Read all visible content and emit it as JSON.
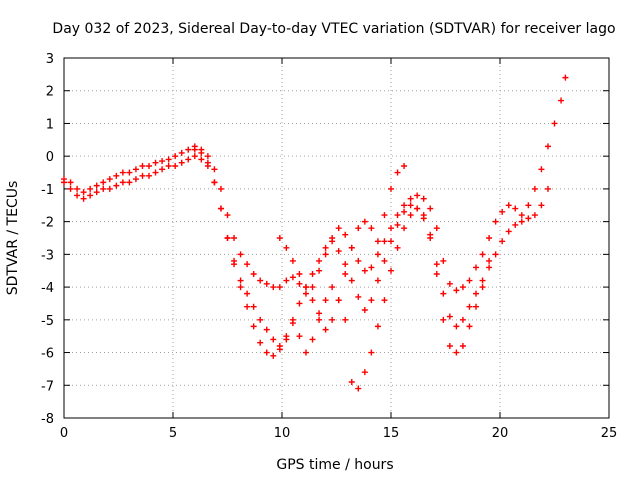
{
  "chart_data": {
    "type": "scatter",
    "title": "Day 032 of 2023, Sidereal Day-to-day VTEC variation (SDTVAR) for receiver lago",
    "xlabel": "GPS time / hours",
    "ylabel": "SDTVAR / TECUs",
    "xlim": [
      0,
      25
    ],
    "ylim": [
      -8,
      3
    ],
    "xticks": [
      0,
      5,
      10,
      15,
      20,
      25
    ],
    "yticks": [
      -8,
      -7,
      -6,
      -5,
      -4,
      -3,
      -2,
      -1,
      0,
      1,
      2,
      3
    ],
    "grid": true,
    "legend": "none",
    "marker": "+",
    "color": "#ff0000",
    "series": [
      {
        "x": [
          0.0,
          0.3,
          0.6,
          0.9,
          1.2,
          1.5,
          1.8,
          2.1,
          2.4,
          2.7,
          3.0,
          3.3,
          3.6,
          3.9,
          4.2,
          4.5,
          4.8,
          5.1,
          5.4,
          5.7,
          6.0,
          6.3,
          6.6,
          6.9,
          7.2,
          7.5,
          7.8,
          8.1,
          8.4,
          8.7,
          9.0,
          9.3,
          9.6,
          9.9,
          10.2,
          10.5,
          10.8,
          11.1,
          11.4,
          11.7,
          12.0,
          12.3,
          12.6,
          12.9,
          13.2,
          13.5,
          13.8,
          14.1,
          14.4,
          14.7,
          15.0,
          15.3,
          15.6,
          15.9,
          16.2,
          16.5,
          16.8,
          17.1,
          17.4,
          17.7,
          18.0,
          18.3,
          18.6,
          18.9,
          19.2,
          19.5,
          19.8,
          20.1,
          20.4,
          20.7,
          21.0,
          21.3,
          21.6,
          21.9,
          22.2,
          22.5,
          22.8,
          23.0
        ],
        "y": [
          -0.7,
          -0.8,
          -1.0,
          -1.1,
          -1.0,
          -0.9,
          -0.8,
          -0.7,
          -0.6,
          -0.5,
          -0.5,
          -0.4,
          -0.3,
          -0.3,
          -0.2,
          -0.15,
          -0.1,
          0.0,
          0.1,
          0.2,
          0.3,
          0.2,
          0.0,
          -0.4,
          -1.0,
          -1.8,
          -2.5,
          -3.0,
          -3.3,
          -3.6,
          -3.8,
          -3.9,
          -4.0,
          -4.0,
          -3.8,
          -3.7,
          -3.9,
          -4.2,
          -4.0,
          -3.5,
          -3.0,
          -2.5,
          -2.2,
          -2.4,
          -2.8,
          -3.2,
          -3.5,
          -3.4,
          -3.0,
          -2.6,
          -2.2,
          -1.8,
          -1.5,
          -1.3,
          -1.2,
          -1.3,
          -1.6,
          -2.2,
          -3.2,
          -3.9,
          -4.1,
          -4.0,
          -3.8,
          -3.4,
          -3.0,
          -2.5,
          -2.0,
          -1.7,
          -1.5,
          -1.6,
          -1.8,
          -1.5,
          -1.0,
          -0.4,
          0.3,
          1.0,
          1.7,
          2.4
        ]
      },
      {
        "x": [
          0.0,
          0.3,
          0.6,
          0.9,
          1.2,
          1.5,
          1.8,
          2.1,
          2.4,
          2.7,
          3.0,
          3.3,
          3.6,
          3.9,
          4.2,
          4.5,
          4.8,
          5.1,
          5.4,
          5.7,
          6.0,
          6.3,
          6.6,
          6.9,
          7.2,
          7.5,
          7.8,
          8.1,
          8.4,
          8.7,
          9.0,
          9.3,
          9.6,
          9.9,
          10.2,
          10.5,
          10.8,
          11.1,
          11.4,
          11.7,
          12.0,
          12.3,
          12.6,
          12.9,
          13.2,
          13.5,
          13.8,
          14.1,
          14.4,
          14.7,
          15.0,
          15.3,
          15.6,
          15.9,
          16.2,
          16.5,
          16.8,
          17.1,
          17.4,
          17.7,
          18.0,
          18.3,
          18.6,
          18.9,
          19.2,
          19.5,
          19.8,
          20.1,
          20.4,
          20.7,
          21.0,
          21.3,
          21.6,
          21.9,
          22.2
        ],
        "y": [
          -0.8,
          -1.0,
          -1.2,
          -1.3,
          -1.2,
          -1.1,
          -1.0,
          -1.0,
          -0.9,
          -0.8,
          -0.8,
          -0.7,
          -0.6,
          -0.6,
          -0.5,
          -0.4,
          -0.3,
          -0.3,
          -0.2,
          -0.1,
          0.0,
          -0.1,
          -0.3,
          -0.8,
          -1.6,
          -2.5,
          -3.2,
          -3.8,
          -4.2,
          -4.6,
          -5.0,
          -5.3,
          -5.6,
          -5.8,
          -5.6,
          -5.0,
          -4.5,
          -4.0,
          -3.6,
          -3.2,
          -2.8,
          -2.6,
          -2.9,
          -3.3,
          -3.8,
          -4.3,
          -4.7,
          -4.4,
          -3.8,
          -3.2,
          -2.6,
          -2.1,
          -1.7,
          -1.5,
          -1.6,
          -1.9,
          -2.5,
          -3.3,
          -4.2,
          -4.9,
          -5.2,
          -5.0,
          -4.6,
          -4.2,
          -3.8,
          -3.4,
          -3.0,
          -2.6,
          -2.3,
          -2.1,
          -2.0,
          -1.9,
          -1.8,
          -1.5,
          -1.0
        ]
      },
      {
        "x": [
          6.0,
          6.3,
          6.6,
          6.9,
          7.2,
          7.5,
          7.8,
          8.1,
          8.4,
          8.7,
          9.0,
          9.3,
          9.6,
          9.9,
          10.2,
          10.5,
          10.8,
          11.1,
          11.4,
          11.7,
          12.0,
          12.3,
          12.6,
          12.9,
          13.2,
          13.5,
          13.8,
          14.1,
          14.4,
          14.7,
          15.0,
          15.3,
          15.6,
          15.9,
          16.2,
          16.5,
          16.8,
          17.1,
          17.4,
          17.7,
          18.0,
          18.3,
          18.6,
          18.9,
          19.2,
          19.5
        ],
        "y": [
          0.2,
          0.1,
          -0.2,
          -0.8,
          -1.6,
          -2.5,
          -3.3,
          -4.0,
          -4.6,
          -5.2,
          -5.7,
          -6.0,
          -6.1,
          -5.9,
          -5.5,
          -5.1,
          -5.5,
          -6.0,
          -5.6,
          -5.0,
          -4.4,
          -4.0,
          -4.4,
          -5.0,
          -6.9,
          -7.1,
          -6.6,
          -6.0,
          -5.2,
          -4.4,
          -3.5,
          -2.8,
          -2.2,
          -1.8,
          -1.6,
          -1.8,
          -2.4,
          -3.6,
          -5.0,
          -5.8,
          -6.0,
          -5.8,
          -5.2,
          -4.6,
          -4.0,
          -3.2
        ]
      },
      {
        "x": [
          9.9,
          10.2,
          10.5,
          10.8,
          11.1,
          11.4,
          11.7,
          12.0,
          12.3,
          12.6,
          12.9,
          13.2,
          13.5,
          13.8,
          14.1,
          14.4,
          14.7,
          15.0,
          15.3,
          15.6
        ],
        "y": [
          -2.5,
          -2.8,
          -3.2,
          -3.6,
          -4.0,
          -4.4,
          -4.8,
          -5.3,
          -5.0,
          -4.4,
          -3.6,
          -2.8,
          -2.2,
          -2.0,
          -2.2,
          -2.6,
          -1.8,
          -1.0,
          -0.5,
          -0.3
        ]
      }
    ]
  }
}
